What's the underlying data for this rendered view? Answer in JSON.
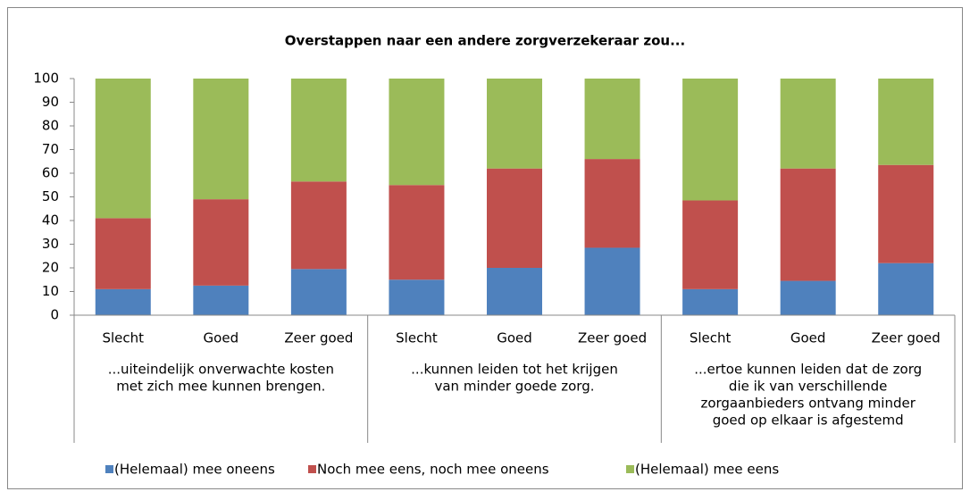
{
  "chart_data": {
    "type": "stacked_bar",
    "title": "Overstappen naar een andere zorgverzekeraar zou...",
    "categories": [
      "Slecht",
      "Goed",
      "Zeer goed",
      "Slecht",
      "Goed",
      "Zeer goed",
      "Slecht",
      "Goed",
      "Zeer goed"
    ],
    "groups": [
      {
        "lines": [
          "...uiteindelijk onverwachte kosten",
          "met zich mee kunnen brengen."
        ]
      },
      {
        "lines": [
          "...kunnen leiden tot het krijgen",
          "van minder goede zorg."
        ]
      },
      {
        "lines": [
          "...ertoe kunnen leiden dat de zorg",
          "die ik van verschillende",
          "zorgaanbieders ontvang minder",
          "goed op elkaar is afgestemd"
        ]
      }
    ],
    "series": [
      {
        "name": "(Helemaal) mee oneens",
        "color": "#4f81bd",
        "values": [
          11,
          12.5,
          19.5,
          15,
          20,
          28.5,
          11,
          14.5,
          22
        ]
      },
      {
        "name": "Noch mee eens, noch mee oneens",
        "color": "#c0504d",
        "values": [
          30,
          36.5,
          37,
          40,
          42,
          37.5,
          37.5,
          47.5,
          41.5
        ]
      },
      {
        "name": "(Helemaal) mee eens",
        "color": "#9bbb59",
        "values": [
          59,
          51,
          43.5,
          45,
          38,
          34,
          51.5,
          38,
          36.5
        ]
      }
    ],
    "ylim": [
      0,
      100
    ],
    "yticks": [
      0,
      10,
      20,
      30,
      40,
      50,
      60,
      70,
      80,
      90,
      100
    ],
    "grid": false,
    "legend": "bottom"
  }
}
